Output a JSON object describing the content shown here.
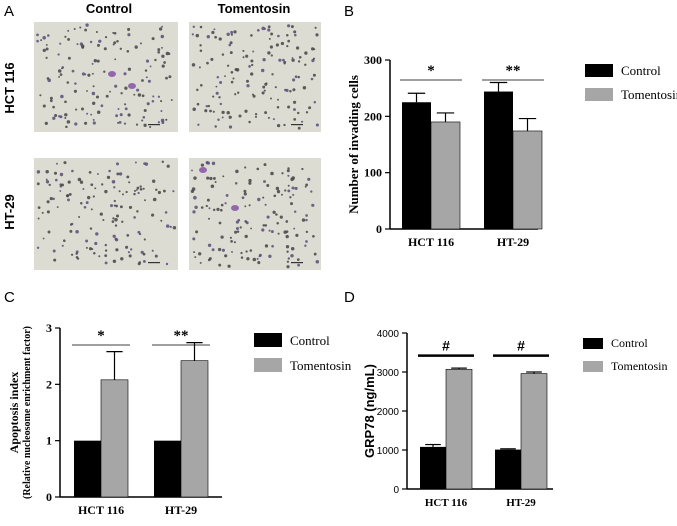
{
  "panels": {
    "A": {
      "letter": "A",
      "col_labels": [
        "Control",
        "Tomentosin"
      ],
      "row_labels": [
        "HCT 116",
        "HT-29"
      ]
    },
    "B": {
      "letter": "B"
    },
    "C": {
      "letter": "C"
    },
    "D": {
      "letter": "D"
    }
  },
  "colors": {
    "control": "#000000",
    "tomentosin": "#a6a6a6",
    "micrograph_bg": "#dcdcd2",
    "cell_stain": "#5a4a7a",
    "stain_blob": "#8a5aaa"
  },
  "chart_data": [
    {
      "panel": "B",
      "type": "bar",
      "categories": [
        "HCT 116",
        "HT-29"
      ],
      "series": [
        {
          "name": "Control",
          "values": [
            225,
            244
          ],
          "errors": [
            16,
            16
          ]
        },
        {
          "name": "Tomentosin",
          "values": [
            190,
            174
          ],
          "errors": [
            16,
            22
          ]
        }
      ],
      "ylabel": "Number of invading cells",
      "ylim": [
        0,
        300
      ],
      "yticks": [
        "0",
        "100",
        "200",
        "300"
      ],
      "significance": [
        "*",
        "**"
      ],
      "legend": "right"
    },
    {
      "panel": "C",
      "type": "bar",
      "categories": [
        "HCT 116",
        "HT-29"
      ],
      "series": [
        {
          "name": "Control",
          "values": [
            1.0,
            1.0
          ],
          "errors": [
            0,
            0
          ]
        },
        {
          "name": "Tomentosin",
          "values": [
            2.08,
            2.42
          ],
          "errors": [
            0.5,
            0.32
          ]
        }
      ],
      "ylabel": "Apoptosis index",
      "ylabel2": "(Relative nucleosome enrichment factor)",
      "ylim": [
        0,
        3
      ],
      "yticks": [
        "0",
        "1",
        "2",
        "3"
      ],
      "significance": [
        "*",
        "**"
      ],
      "legend": "right"
    },
    {
      "panel": "D",
      "type": "bar",
      "categories": [
        "HCT 116",
        "HT-29"
      ],
      "series": [
        {
          "name": "Control",
          "values": [
            1080,
            1010
          ],
          "errors": [
            60,
            20
          ]
        },
        {
          "name": "Tomentosin",
          "values": [
            3070,
            2960
          ],
          "errors": [
            30,
            40
          ]
        }
      ],
      "ylabel": "GRP78 (ng/mL)",
      "ylim": [
        0,
        4000
      ],
      "yticks": [
        "0",
        "1000",
        "2000",
        "3000",
        "4000"
      ],
      "significance": [
        "#",
        "#"
      ],
      "legend": "right"
    }
  ]
}
